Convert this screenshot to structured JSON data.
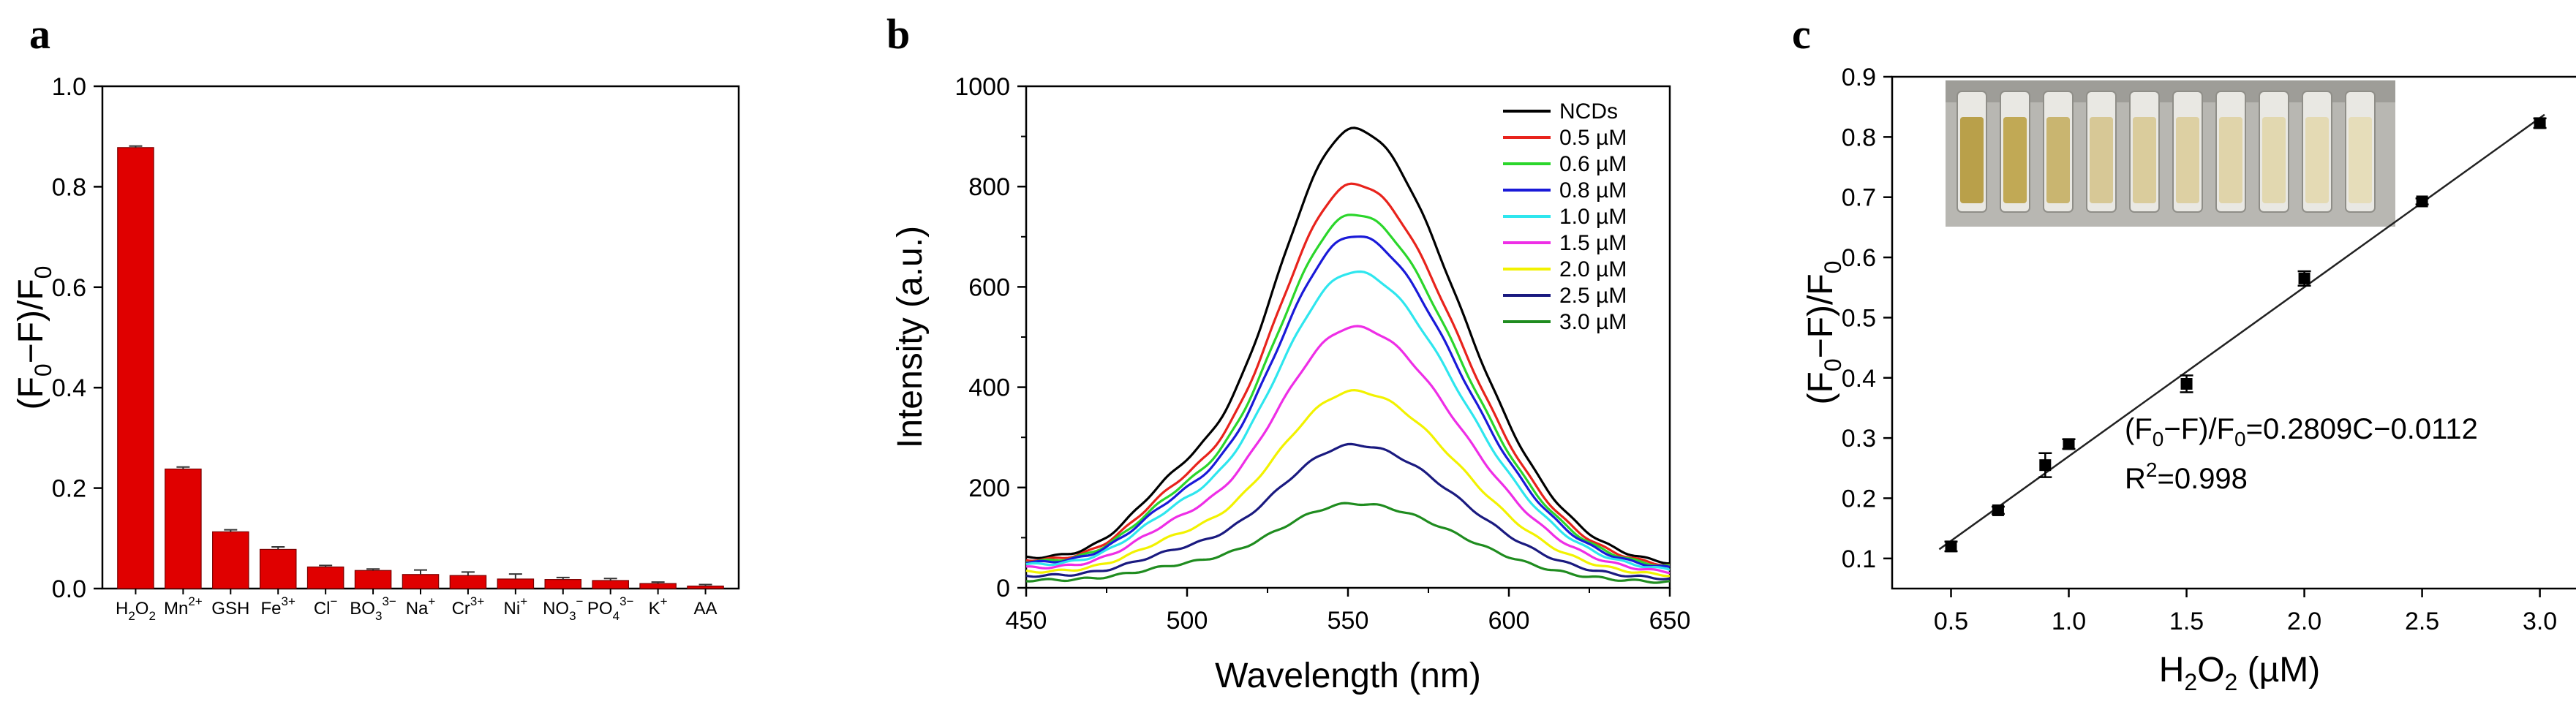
{
  "panels": {
    "a": {
      "label": "a"
    },
    "b": {
      "label": "b"
    },
    "c": {
      "label": "c"
    }
  },
  "chart_data": [
    {
      "id": "a",
      "type": "bar",
      "ylabel": "(F0−F)/F0",
      "ylim": [
        0,
        1.0
      ],
      "yticks": [
        "0.0",
        "0.2",
        "0.4",
        "0.6",
        "0.8",
        "1.0"
      ],
      "categories": [
        {
          "base": "H",
          "sub": "2",
          "base2": "O",
          "sub2": "2",
          "sup": ""
        },
        {
          "base": "Mn",
          "sup": "2+"
        },
        {
          "base": "GSH",
          "sup": ""
        },
        {
          "base": "Fe",
          "sup": "3+"
        },
        {
          "base": "Cl",
          "sup": "−"
        },
        {
          "base": "BO",
          "sub": "3",
          "sup": "3−"
        },
        {
          "base": "Na",
          "sup": "+"
        },
        {
          "base": "Cr",
          "sup": "3+"
        },
        {
          "base": "Ni",
          "sup": "+"
        },
        {
          "base": "NO",
          "sub": "3",
          "sup": "−"
        },
        {
          "base": "PO",
          "sub": "4",
          "sup": "3−"
        },
        {
          "base": "K",
          "sup": "+"
        },
        {
          "base": "AA",
          "sup": ""
        }
      ],
      "values": [
        0.878,
        0.238,
        0.113,
        0.078,
        0.043,
        0.036,
        0.028,
        0.026,
        0.019,
        0.018,
        0.016,
        0.01,
        0.005
      ],
      "errors": [
        0.003,
        0.004,
        0.004,
        0.005,
        0.003,
        0.003,
        0.009,
        0.007,
        0.01,
        0.004,
        0.004,
        0.003,
        0.003
      ],
      "bar_color": "#e00000"
    },
    {
      "id": "b",
      "type": "line",
      "xlabel": "Wavelength (nm)",
      "ylabel": "Intensity (a.u.)",
      "xlim": [
        450,
        650
      ],
      "ylim": [
        0,
        1000
      ],
      "xticks": [
        "450",
        "500",
        "550",
        "600",
        "650"
      ],
      "yticks": [
        "0",
        "200",
        "400",
        "600",
        "800",
        "1000"
      ],
      "peak_nm": 552,
      "series": [
        {
          "name": "NCDs",
          "peak": 915,
          "base450": 60,
          "base650": 42,
          "color": "#000000"
        },
        {
          "name": "0.5 µM",
          "peak": 805,
          "base450": 55,
          "base650": 38,
          "color": "#e8231c"
        },
        {
          "name": "0.6 µM",
          "peak": 745,
          "base450": 52,
          "base650": 36,
          "color": "#2bd62b"
        },
        {
          "name": "0.8 µM",
          "peak": 702,
          "base450": 50,
          "base650": 34,
          "color": "#1a1ad8"
        },
        {
          "name": "1.0 µM",
          "peak": 630,
          "base450": 46,
          "base650": 31,
          "color": "#2ee6ee"
        },
        {
          "name": "1.5 µM",
          "peak": 520,
          "base450": 40,
          "base650": 27,
          "color": "#ee2ee6"
        },
        {
          "name": "2.0 µM",
          "peak": 392,
          "base450": 32,
          "base650": 22,
          "color": "#f2f200"
        },
        {
          "name": "2.5 µM",
          "peak": 285,
          "base450": 24,
          "base650": 16,
          "color": "#1a1a80"
        },
        {
          "name": "3.0 µM",
          "peak": 168,
          "base450": 15,
          "base650": 10,
          "color": "#1f8c1f"
        }
      ]
    },
    {
      "id": "c",
      "type": "scatter",
      "xlabel": "H2O2 (µM)",
      "ylabel": "(F0−F)/F0",
      "xlim": [
        0.25,
        3.2
      ],
      "ylim": [
        0.05,
        0.9
      ],
      "xticks": [
        "0.5",
        "1.0",
        "1.5",
        "2.0",
        "2.5",
        "3.0"
      ],
      "yticks": [
        "0.1",
        "0.2",
        "0.3",
        "0.4",
        "0.5",
        "0.6",
        "0.7",
        "0.8",
        "0.9"
      ],
      "x": [
        0.5,
        0.7,
        0.9,
        1.0,
        1.5,
        2.0,
        2.5,
        3.0
      ],
      "y": [
        0.12,
        0.18,
        0.255,
        0.29,
        0.39,
        0.565,
        0.693,
        0.823
      ],
      "errors": [
        0.008,
        0.006,
        0.02,
        0.008,
        0.014,
        0.012,
        0.005,
        0.008
      ],
      "fit": {
        "slope": 0.2809,
        "intercept": -0.0112,
        "x_range": [
          0.45,
          3.02
        ]
      },
      "equation": "(F0−F)/F0=0.2809C−0.0112",
      "r2_label": "R2=0.998",
      "inset": "photo of cuvettes",
      "inset_vial_colors": [
        "#b9a04a",
        "#c1a955",
        "#c9b570",
        "#d7c896",
        "#dacc9c",
        "#ddd0a3",
        "#e0d4aa",
        "#e2d8b0",
        "#e4dab4",
        "#e6ddba"
      ]
    }
  ]
}
